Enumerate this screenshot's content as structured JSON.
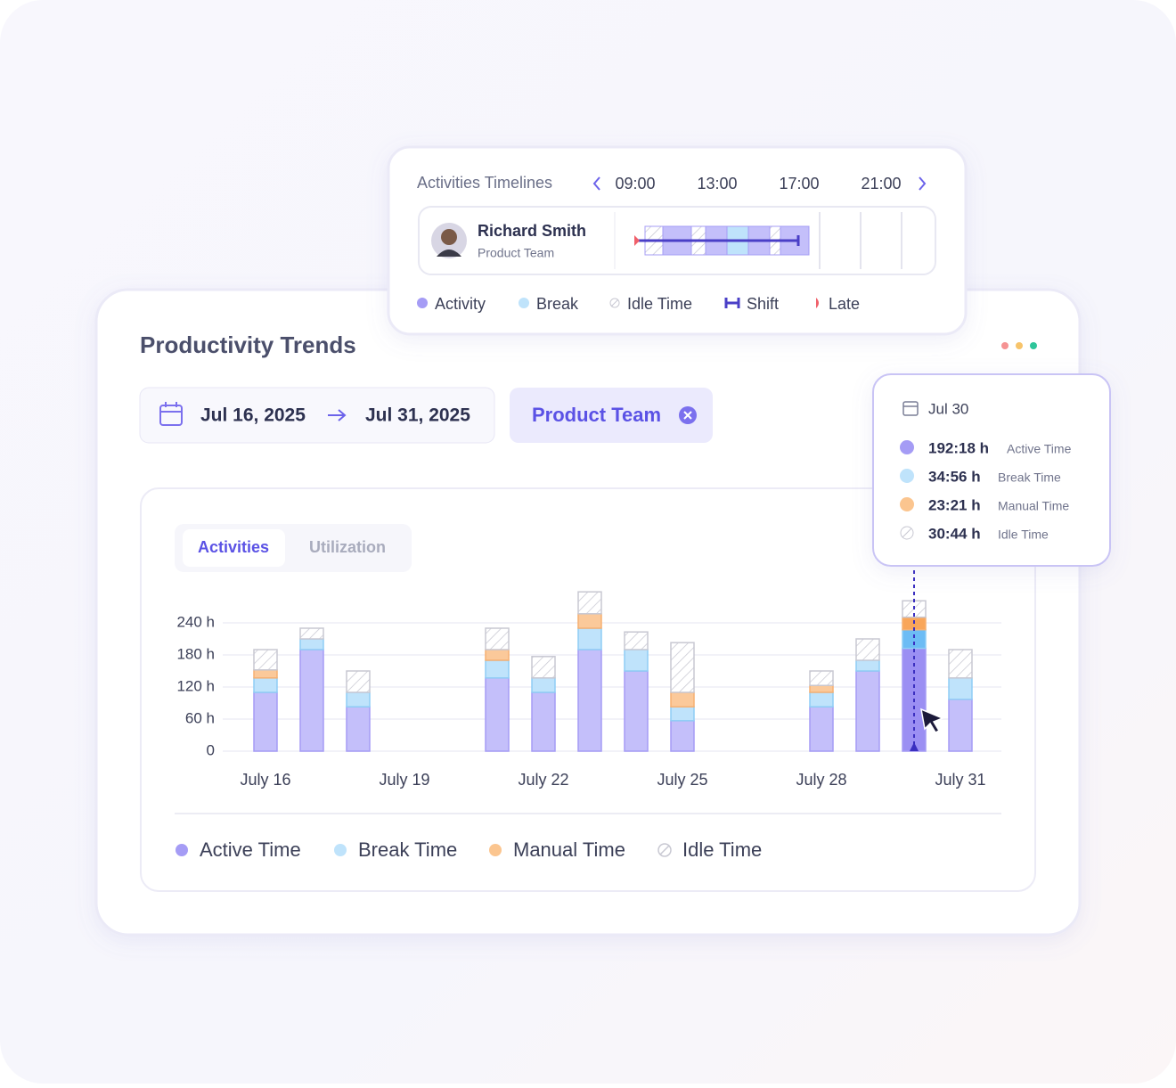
{
  "timeline": {
    "title": "Activities Timelines",
    "times": [
      "09:00",
      "13:00",
      "17:00",
      "21:00"
    ],
    "person": {
      "name": "Richard Smith",
      "team": "Product Team"
    },
    "legend": [
      "Activity",
      "Break",
      "Idle Time",
      "Shift",
      "Late"
    ]
  },
  "header": {
    "title": "Productivity Trends",
    "date_from": "Jul 16, 2025",
    "date_to": "Jul 31, 2025",
    "team_filter": "Product Team"
  },
  "tabs": [
    "Activities",
    "Utilization"
  ],
  "chart_data": {
    "type": "bar",
    "stacked": true,
    "categories": [
      "July 16",
      null,
      null,
      "July 19",
      null,
      null,
      "July 22",
      null,
      null,
      "July 25",
      null,
      null,
      "July 28",
      null,
      null,
      "July 31"
    ],
    "series": [
      {
        "name": "Active Time",
        "color": "#c4bffa",
        "values": [
          110,
          190,
          83,
          null,
          null,
          137,
          110,
          190,
          150,
          57,
          null,
          null,
          83,
          150,
          192.3,
          97
        ]
      },
      {
        "name": "Break Time",
        "color": "#bfe3fb",
        "values": [
          27,
          20,
          27,
          null,
          null,
          33,
          27,
          40,
          40,
          26,
          null,
          null,
          27,
          20,
          34.9,
          40
        ]
      },
      {
        "name": "Manual Time",
        "color": "#fbc99a",
        "values": [
          15,
          0,
          0,
          null,
          null,
          20,
          0,
          27,
          0,
          27,
          null,
          null,
          13,
          0,
          23.4,
          0
        ]
      },
      {
        "name": "Idle Time",
        "color": "#d0d0d8",
        "values": [
          38,
          20,
          40,
          null,
          null,
          40,
          40,
          41,
          33,
          93,
          null,
          null,
          27,
          40,
          30.7,
          53
        ]
      }
    ],
    "ylim": [
      0,
      300
    ],
    "yticks": [
      0,
      {
        "value": 60,
        "label": "60 h"
      },
      {
        "value": 120,
        "label": "120 h"
      },
      {
        "value": 180,
        "label": "180 h"
      },
      {
        "value": 240,
        "label": "240 h"
      }
    ],
    "grid": true
  },
  "tooltip": {
    "date": "Jul 30",
    "rows": [
      {
        "value": "192:18 h",
        "label": "Active Time"
      },
      {
        "value": "34:56 h",
        "label": "Break Time"
      },
      {
        "value": "23:21 h",
        "label": "Manual Time"
      },
      {
        "value": "30:44 h",
        "label": "Idle Time"
      }
    ]
  }
}
